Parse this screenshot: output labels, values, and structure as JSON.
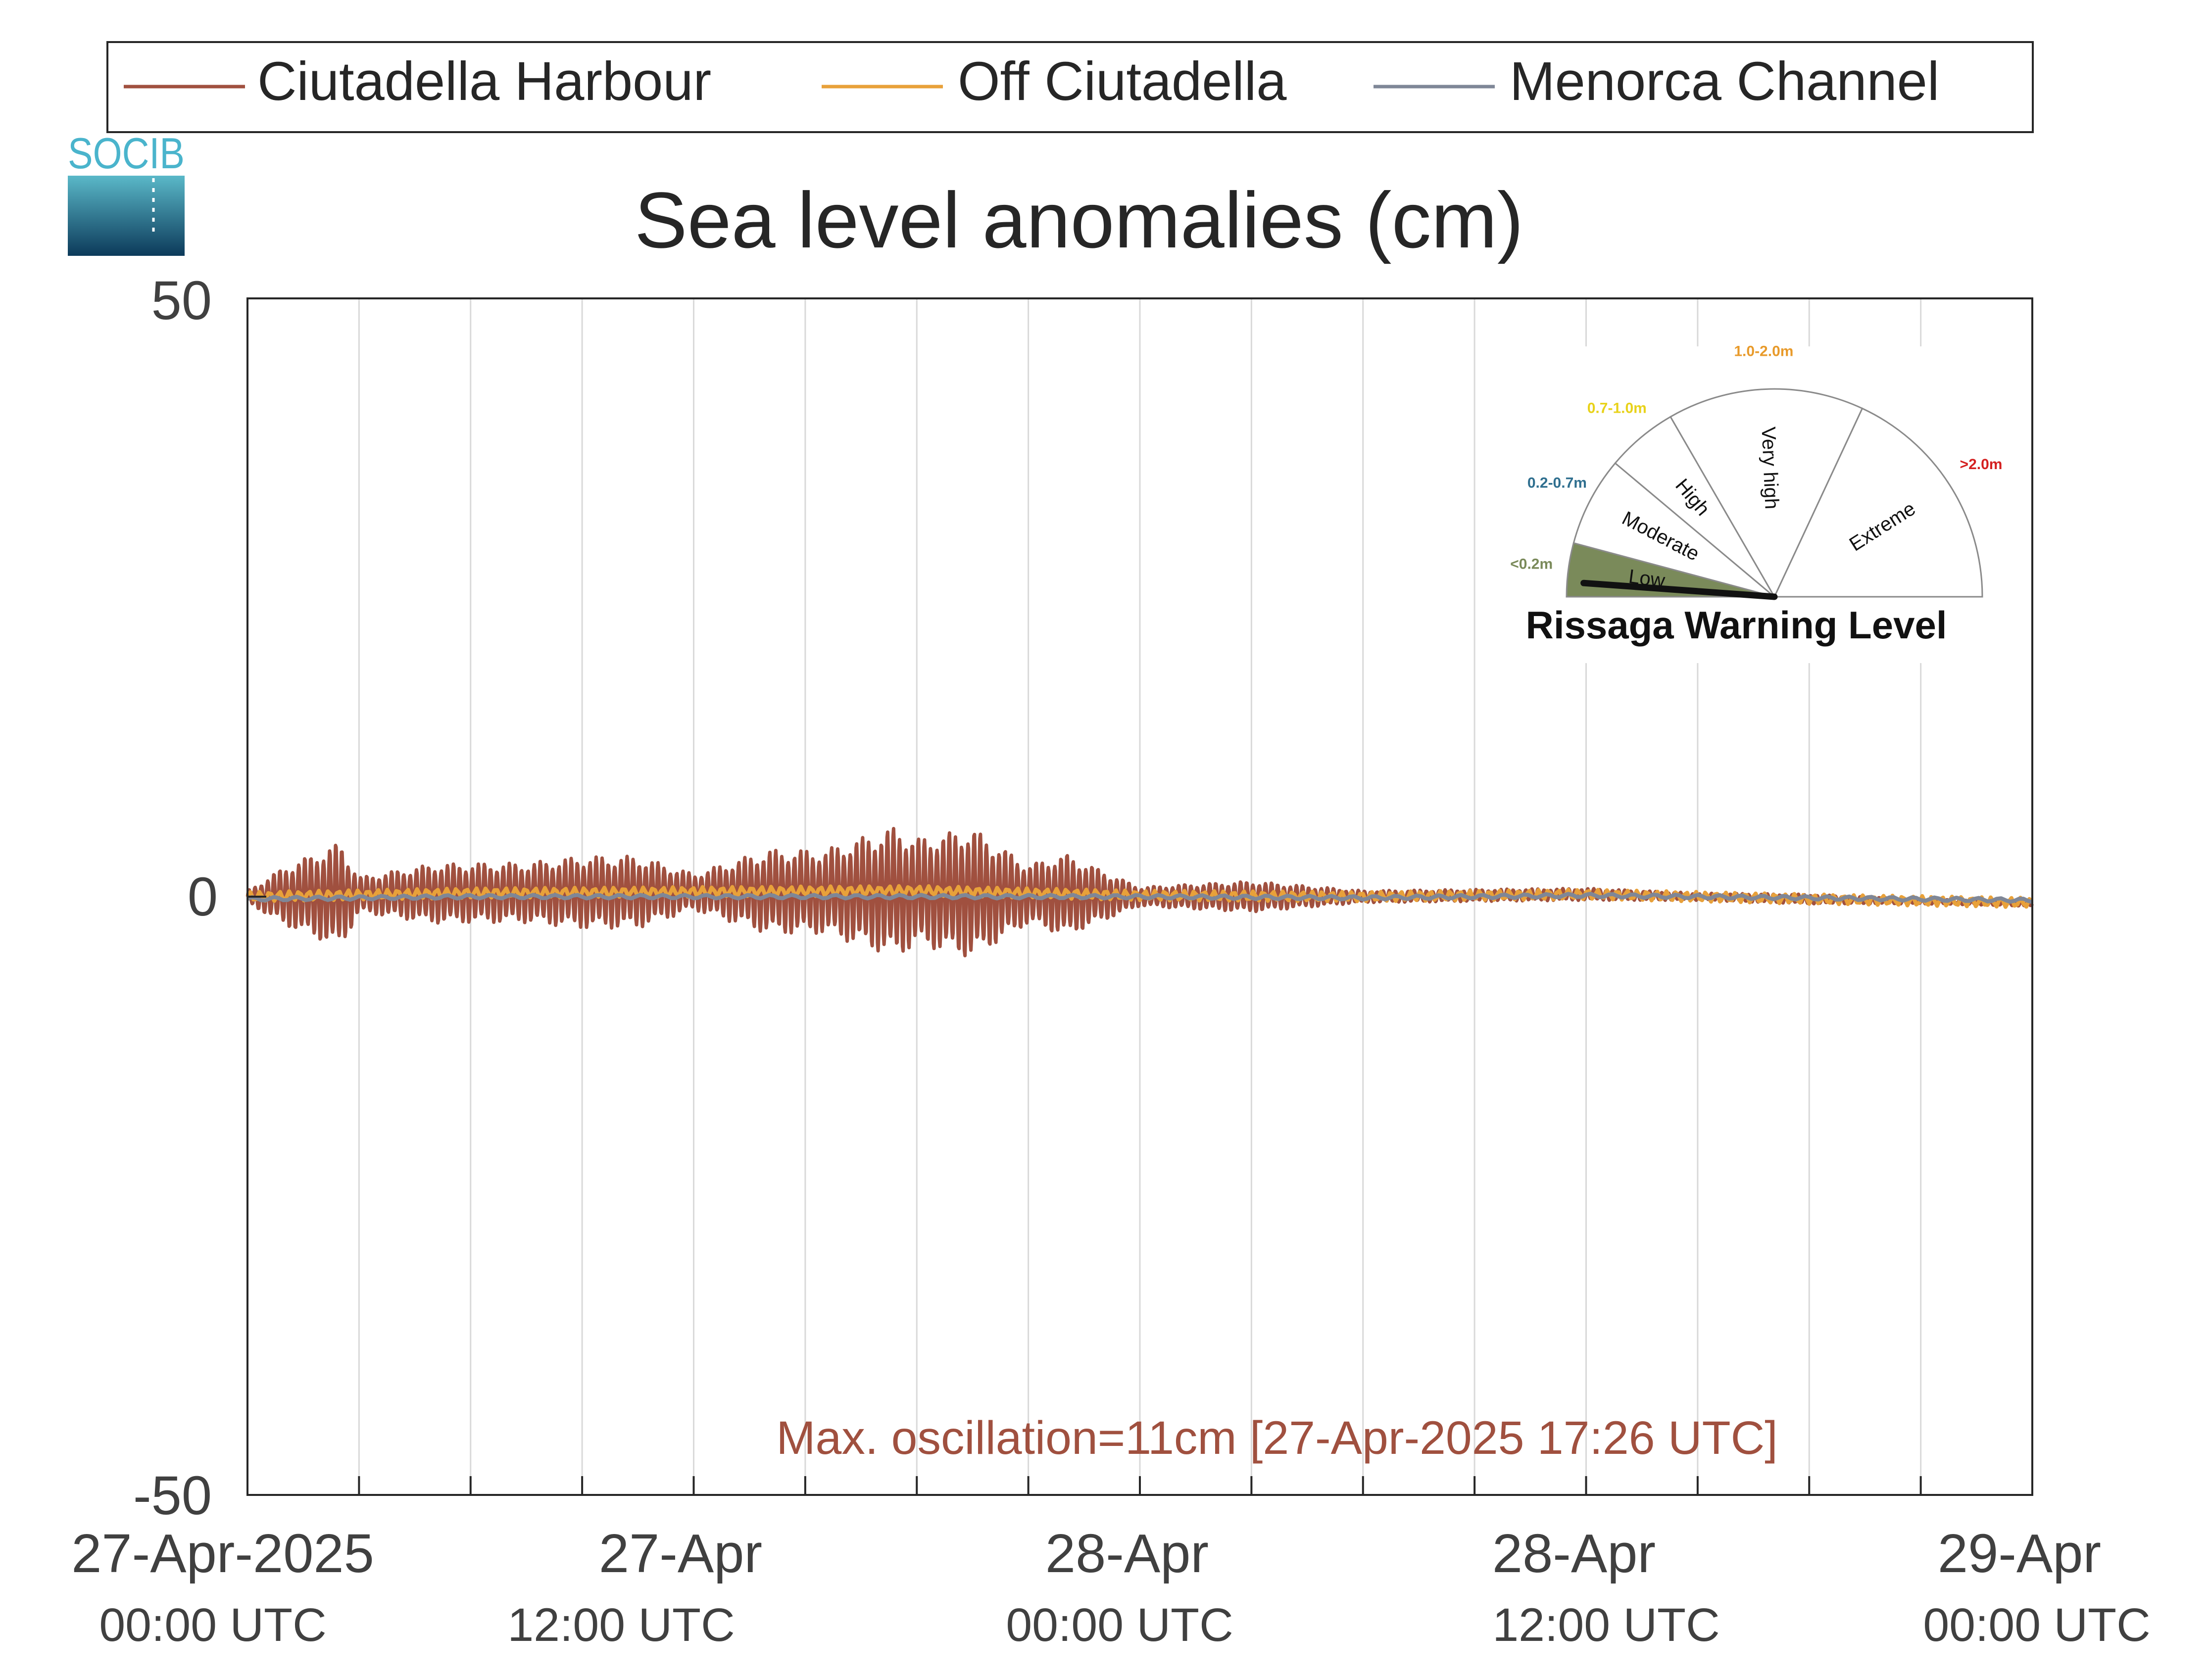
{
  "logo": {
    "text": "SOCIB"
  },
  "legend": {
    "placement": "top",
    "items": [
      {
        "label": "Ciutadella Harbour",
        "color": "#a0503f"
      },
      {
        "label": "Off Ciutadella",
        "color": "#e8a13a"
      },
      {
        "label": "Menorca Channel",
        "color": "#7f8797"
      }
    ]
  },
  "chart_data": {
    "type": "line",
    "title": "Sea level anomalies (cm)",
    "xlabel": "",
    "ylabel": "",
    "x_range": [
      "2025-04-27 00:00",
      "2025-04-29 00:00"
    ],
    "ylim": [
      -50,
      50
    ],
    "y_ticks": [
      50,
      0,
      -50
    ],
    "x_ticks": [
      {
        "at": "2025-04-27 00:00",
        "line1": "27-Apr-2025",
        "line2": "00:00 UTC"
      },
      {
        "at": "2025-04-27 12:00",
        "line1": "27-Apr",
        "line2": "12:00 UTC"
      },
      {
        "at": "2025-04-28 00:00",
        "line1": "28-Apr",
        "line2": "00:00 UTC"
      },
      {
        "at": "2025-04-28 12:00",
        "line1": "28-Apr",
        "line2": "12:00 UTC"
      },
      {
        "at": "2025-04-29 00:00",
        "line1": "29-Apr",
        "line2": "00:00 UTC"
      }
    ],
    "grid": "vertical lines every 3 hours",
    "series": [
      {
        "name": "Ciutadella Harbour",
        "color": "#a0503f",
        "oscillation_period_minutes": 10,
        "envelope_time": [
          "2025-04-27 00:00",
          "2025-04-27 01:00",
          "2025-04-27 02:30",
          "2025-04-27 03:00",
          "2025-04-27 05:00",
          "2025-04-27 06:30",
          "2025-04-27 07:30",
          "2025-04-27 09:00",
          "2025-04-27 10:30",
          "2025-04-27 12:00",
          "2025-04-27 14:00",
          "2025-04-27 15:30",
          "2025-04-27 17:26",
          "2025-04-27 18:00",
          "2025-04-27 19:30",
          "2025-04-27 21:00",
          "2025-04-27 22:00",
          "2025-04-28 00:00",
          "2025-04-28 01:00",
          "2025-04-28 03:00",
          "2025-04-28 06:00",
          "2025-04-28 09:00",
          "2025-04-28 12:00",
          "2025-04-28 15:00",
          "2025-04-28 18:00",
          "2025-04-28 21:00",
          "2025-04-29 00:00"
        ],
        "envelope_half_amplitude_cm": [
          0.5,
          2.5,
          4.5,
          1.5,
          2.5,
          2.5,
          2.5,
          3.0,
          3.0,
          1.5,
          3.5,
          3.5,
          5.5,
          4.5,
          5.5,
          2.5,
          3.5,
          0.8,
          1.0,
          1.3,
          0.5,
          0.5,
          0.5,
          0.3,
          0.4,
          0.2,
          0.2
        ],
        "mean_time": [
          "2025-04-27 00:00",
          "2025-04-27 06:00",
          "2025-04-27 12:00",
          "2025-04-27 18:00",
          "2025-04-28 00:00",
          "2025-04-28 06:00",
          "2025-04-28 12:00",
          "2025-04-28 18:00",
          "2025-04-29 00:00"
        ],
        "mean_cm": [
          0.0,
          0.3,
          0.4,
          0.4,
          0.0,
          0.0,
          0.2,
          -0.2,
          -0.6
        ]
      },
      {
        "name": "Off Ciutadella",
        "color": "#e8a13a",
        "time": [
          "2025-04-27 00:00",
          "2025-04-27 06:00",
          "2025-04-27 12:00",
          "2025-04-27 18:00",
          "2025-04-28 00:00",
          "2025-04-28 06:00",
          "2025-04-28 12:00",
          "2025-04-28 18:00",
          "2025-04-29 00:00"
        ],
        "values": [
          0.0,
          0.3,
          0.4,
          0.5,
          0.1,
          0.0,
          0.2,
          -0.2,
          -0.5
        ],
        "oscillation_half_amplitude_cm": 0.4
      },
      {
        "name": "Menorca Channel",
        "color": "#7f8797",
        "time": [
          "2025-04-27 00:00",
          "2025-04-27 06:00",
          "2025-04-27 12:00",
          "2025-04-27 18:00",
          "2025-04-28 00:00",
          "2025-04-28 06:00",
          "2025-04-28 12:00",
          "2025-04-28 18:00",
          "2025-04-29 00:00"
        ],
        "values": [
          -0.2,
          0.0,
          0.0,
          0.0,
          0.0,
          -0.1,
          0.1,
          -0.1,
          -0.3
        ],
        "oscillation_half_amplitude_cm": 0.15
      }
    ],
    "annotation": {
      "text": "Max. oscillation=11cm [27-Apr-2025 17:26 UTC]",
      "color": "#a0503f"
    }
  },
  "gauge": {
    "title": "Rissaga Warning Level",
    "placement": "top-right",
    "needle_level_m": 0.1,
    "sectors": [
      {
        "name": "Low",
        "range": "<0.2m",
        "range_color": "#7a8a5a",
        "fill": "#7a8a5a",
        "sweep_deg": 15
      },
      {
        "name": "Moderate",
        "range": "0.2-0.7m",
        "range_color": "#2f6f8f",
        "fill": "#ffffff",
        "sweep_deg": 25
      },
      {
        "name": "High",
        "range": "0.7-1.0m",
        "range_color": "#e8d21a",
        "fill": "#ffffff",
        "sweep_deg": 20
      },
      {
        "name": "Very high",
        "range": "1.0-2.0m",
        "range_color": "#e89a2a",
        "fill": "#ffffff",
        "sweep_deg": 55
      },
      {
        "name": "Extreme",
        "range": ">2.0m",
        "range_color": "#d42020",
        "fill": "#ffffff",
        "sweep_deg": 65
      }
    ]
  }
}
